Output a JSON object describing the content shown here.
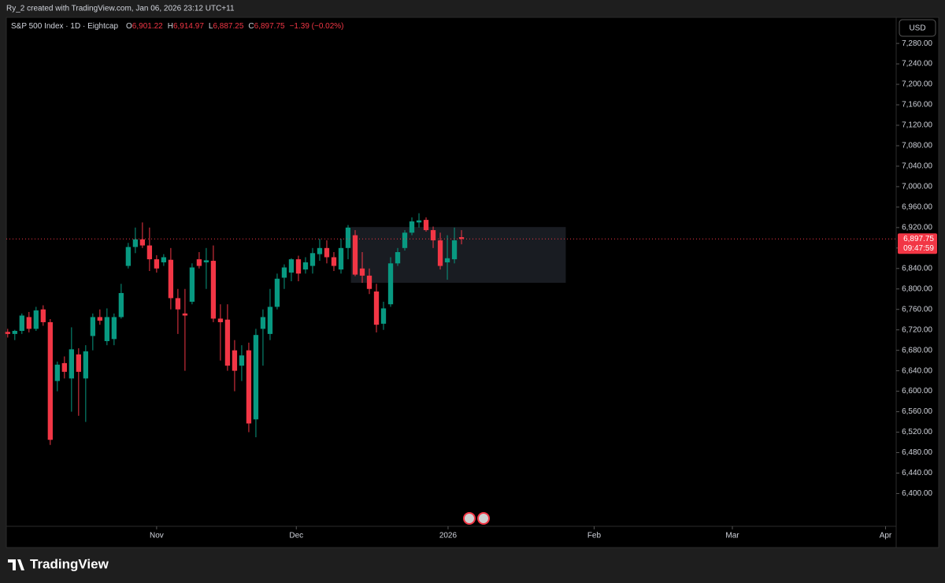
{
  "header": {
    "text": "Ry_2 created with TradingView.com, Jan 06, 2026 23:12 UTC+11"
  },
  "footer": {
    "brand": "TradingView"
  },
  "chart_data": {
    "type": "candlestick",
    "symbol": "S&P 500 Index · 1D · Eightcap",
    "ohlc_legend": [
      {
        "label": "O",
        "value": "6,901.22"
      },
      {
        "label": "H",
        "value": "6,914.97"
      },
      {
        "label": "L",
        "value": "6,887.25"
      },
      {
        "label": "C",
        "value": "6,897.75"
      }
    ],
    "change": "−1.39 (−0.02%)",
    "currency": "USD",
    "up_color": "#089981",
    "down_color": "#f23645",
    "grid": false,
    "x": [
      0,
      1,
      2,
      3,
      4,
      5,
      6,
      7,
      8,
      9,
      10,
      11,
      12,
      13,
      14,
      15,
      16,
      17,
      18,
      19,
      20,
      21,
      22,
      23,
      24,
      25,
      26,
      27,
      28,
      29,
      30,
      31,
      32,
      33,
      34,
      35,
      36,
      37,
      38,
      39,
      40,
      41,
      42,
      43,
      44,
      45,
      46,
      47,
      48,
      49,
      50,
      51,
      52,
      53,
      54,
      55,
      56,
      57,
      58,
      59,
      60,
      61,
      62,
      63,
      64
    ],
    "open": [
      6716,
      6712,
      6718,
      6745,
      6722,
      6760,
      6735,
      6620,
      6655,
      6625,
      6672,
      6625,
      6708,
      6745,
      6698,
      6702,
      6745,
      6845,
      6882,
      6897,
      6885,
      6858,
      6852,
      6857,
      6782,
      6752,
      6775,
      6858,
      6852,
      6855,
      6742,
      6740,
      6680,
      6650,
      6680,
      6545,
      6722,
      6712,
      6765,
      6822,
      6832,
      6858,
      6838,
      6845,
      6868,
      6880,
      6862,
      6838,
      6880,
      6905,
      6840,
      6826,
      6795,
      6732,
      6770,
      6850,
      6880,
      6910,
      6930,
      6935,
      6915,
      6895,
      6852,
      6858,
      6901.22
    ],
    "high": [
      6722,
      6720,
      6752,
      6755,
      6765,
      6768,
      6741,
      6658,
      6668,
      6725,
      6684,
      6690,
      6752,
      6760,
      6762,
      6752,
      6810,
      6890,
      6920,
      6930,
      6920,
      6866,
      6868,
      6880,
      6800,
      6800,
      6850,
      6872,
      6880,
      6885,
      6770,
      6770,
      6700,
      6690,
      6695,
      6722,
      6760,
      6800,
      6830,
      6848,
      6860,
      6865,
      6862,
      6880,
      6898,
      6895,
      6872,
      6898,
      6925,
      6915,
      6872,
      6840,
      6810,
      6775,
      6862,
      6880,
      6915,
      6940,
      6948,
      6940,
      6922,
      6910,
      6905,
      6920,
      6914.97
    ],
    "low": [
      6705,
      6700,
      6712,
      6715,
      6718,
      6728,
      6495,
      6600,
      6625,
      6560,
      6552,
      6540,
      6680,
      6730,
      6690,
      6690,
      6742,
      6840,
      6870,
      6880,
      6835,
      6832,
      6845,
      6760,
      6712,
      6640,
      6770,
      6840,
      6800,
      6735,
      6660,
      6640,
      6600,
      6620,
      6520,
      6510,
      6650,
      6700,
      6760,
      6800,
      6815,
      6815,
      6830,
      6830,
      6855,
      6850,
      6835,
      6830,
      6858,
      6825,
      6812,
      6790,
      6715,
      6720,
      6765,
      6845,
      6875,
      6905,
      6920,
      6912,
      6880,
      6838,
      6818,
      6850,
      6887.25
    ],
    "close": [
      6712,
      6718,
      6748,
      6722,
      6758,
      6735,
      6505,
      6652,
      6638,
      6682,
      6638,
      6678,
      6745,
      6738,
      6745,
      6745,
      6792,
      6882,
      6897,
      6885,
      6858,
      6840,
      6862,
      6782,
      6760,
      6748,
      6842,
      6845,
      6856,
      6742,
      6735,
      6650,
      6640,
      6670,
      6537,
      6710,
      6745,
      6765,
      6820,
      6842,
      6858,
      6830,
      6852,
      6870,
      6880,
      6862,
      6845,
      6880,
      6920,
      6828,
      6826,
      6800,
      6730,
      6762,
      6850,
      6872,
      6910,
      6932,
      6934,
      6915,
      6895,
      6845,
      6860,
      6895,
      6897.75
    ],
    "xlim": [
      -0.2,
      125.3
    ],
    "xticks": [
      {
        "value": 21,
        "label": "Nov"
      },
      {
        "value": 40.7,
        "label": "Dec"
      },
      {
        "value": 62.1,
        "label": "2026"
      },
      {
        "value": 82.7,
        "label": "Feb"
      },
      {
        "value": 102.2,
        "label": "Mar"
      },
      {
        "value": 123.8,
        "label": "Apr"
      }
    ],
    "ylim": [
      6336,
      7331
    ],
    "yticks": [
      {
        "value": 6400,
        "label": "6,400.00"
      },
      {
        "value": 6440,
        "label": "6,440.00"
      },
      {
        "value": 6480,
        "label": "6,480.00"
      },
      {
        "value": 6520,
        "label": "6,520.00"
      },
      {
        "value": 6560,
        "label": "6,560.00"
      },
      {
        "value": 6600,
        "label": "6,600.00"
      },
      {
        "value": 6640,
        "label": "6,640.00"
      },
      {
        "value": 6680,
        "label": "6,680.00"
      },
      {
        "value": 6720,
        "label": "6,720.00"
      },
      {
        "value": 6760,
        "label": "6,760.00"
      },
      {
        "value": 6800,
        "label": "6,800.00"
      },
      {
        "value": 6840,
        "label": "6,840.00"
      },
      {
        "value": 6880,
        "label": "6,880.00"
      },
      {
        "value": 6920,
        "label": "6,920.00"
      },
      {
        "value": 6960,
        "label": "6,960.00"
      },
      {
        "value": 7000,
        "label": "7,000.00"
      },
      {
        "value": 7040,
        "label": "7,040.00"
      },
      {
        "value": 7080,
        "label": "7,080.00"
      },
      {
        "value": 7120,
        "label": "7,120.00"
      },
      {
        "value": 7160,
        "label": "7,160.00"
      },
      {
        "value": 7200,
        "label": "7,200.00"
      },
      {
        "value": 7240,
        "label": "7,240.00"
      },
      {
        "value": 7280,
        "label": "7,280.00"
      }
    ],
    "zone": {
      "x": [
        48.4,
        78.7
      ],
      "y": [
        6812,
        6921
      ],
      "color": "#2a2e39"
    },
    "last_price": {
      "value": 6897.75,
      "label": "6,897.75",
      "countdown": "09:47:59"
    }
  }
}
